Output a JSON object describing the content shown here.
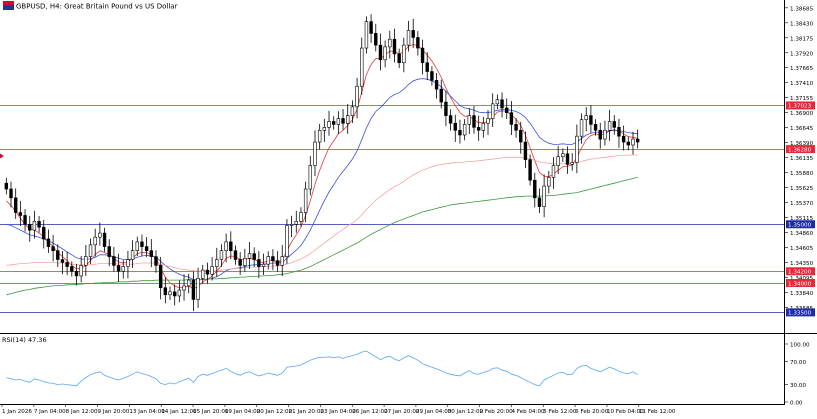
{
  "header": {
    "symbol_line": "GBPUSD, H4:  Great Britain Pound vs US Dollar"
  },
  "colors": {
    "background": "#ffffff",
    "bull_body": "#ffffff",
    "bear_body": "#000000",
    "wick": "#000000",
    "ma_fast": "#e53935",
    "ma_mid": "#3f51d8",
    "ma_slow": "#f4a7a0",
    "ma_long": "#3a9a3a",
    "rsi_line": "#5aa8f0",
    "hline_red": "#e8273a",
    "hline_blue": "#1e2aa8",
    "axis_text": "#000000"
  },
  "price_axis": {
    "min": 1.332,
    "max": 1.3875,
    "ticks": [
      "1.38685",
      "1.38430",
      "1.38175",
      "1.37920",
      "1.37665",
      "1.37410",
      "1.37155",
      "1.36900",
      "1.36645",
      "1.36390",
      "1.36135",
      "1.35880",
      "1.35625",
      "1.35370",
      "1.35115",
      "1.34860",
      "1.34605",
      "1.34350",
      "1.34095",
      "1.33840",
      "1.33585"
    ]
  },
  "price_labels": [
    {
      "text": "1.37023",
      "price": 1.37023,
      "kind": "red"
    },
    {
      "text": "1.36280",
      "price": 1.3628,
      "kind": "red"
    },
    {
      "text": "1.35000",
      "price": 1.35,
      "kind": "blue"
    },
    {
      "text": "1.34200",
      "price": 1.342,
      "kind": "red"
    },
    {
      "text": "1.34000",
      "price": 1.34,
      "kind": "red"
    },
    {
      "text": "1.33500",
      "price": 1.335,
      "kind": "blue"
    }
  ],
  "time_axis": {
    "labels": [
      "1 Jan 2026",
      "7 Jan 04:00",
      "8 Jan 12:00",
      "9 Jan 20:00",
      "13 Jan 04:00",
      "14 Jan 12:00",
      "15 Jan 20:00",
      "19 Jan 04:00",
      "20 Jan 12:00",
      "21 Jan 20:00",
      "23 Jan 04:00",
      "26 Jan 12:00",
      "27 Jan 20:00",
      "29 Jan 04:00",
      "30 Jan 12:00",
      "2 Feb 20:00",
      "4 Feb 04:00",
      "5 Feb 12:00",
      "6 Feb 20:00",
      "10 Feb 04:00",
      "11 Feb 12:00"
    ]
  },
  "rsi_panel": {
    "label": "RSI(14) 47.36",
    "min": 0,
    "max": 100,
    "ticks": [
      "100.00",
      "70.00",
      "30.00",
      "0.00"
    ]
  },
  "chart_data": {
    "type": "candlestick",
    "title": "GBPUSD, H4:  Great Britain Pound vs US Dollar",
    "timeframe": "H4",
    "candles_close": [
      1.356,
      1.3545,
      1.352,
      1.3515,
      1.35,
      1.349,
      1.3505,
      1.3495,
      1.3475,
      1.3462,
      1.3455,
      1.344,
      1.3435,
      1.3428,
      1.342,
      1.3412,
      1.343,
      1.3445,
      1.3465,
      1.3478,
      1.3485,
      1.3462,
      1.3445,
      1.343,
      1.342,
      1.3428,
      1.344,
      1.3455,
      1.347,
      1.3462,
      1.3455,
      1.3445,
      1.343,
      1.3392,
      1.338,
      1.3385,
      1.3378,
      1.3388,
      1.3395,
      1.3405,
      1.3372,
      1.3408,
      1.3422,
      1.3415,
      1.3428,
      1.344,
      1.3455,
      1.347,
      1.3455,
      1.344,
      1.343,
      1.3442,
      1.345,
      1.344,
      1.3428,
      1.3432,
      1.3445,
      1.3438,
      1.343,
      1.3445,
      1.3498,
      1.35,
      1.3505,
      1.352,
      1.356,
      1.36,
      1.364,
      1.366,
      1.3665,
      1.3675,
      1.367,
      1.368,
      1.3672,
      1.3685,
      1.37,
      1.3735,
      1.38,
      1.3845,
      1.3825,
      1.3805,
      1.378,
      1.3802,
      1.3815,
      1.379,
      1.3775,
      1.3805,
      1.383,
      1.3818,
      1.38,
      1.3775,
      1.376,
      1.3745,
      1.373,
      1.3708,
      1.3685,
      1.3672,
      1.366,
      1.3652,
      1.367,
      1.3685,
      1.3665,
      1.366,
      1.3672,
      1.368,
      1.3705,
      1.3712,
      1.3698,
      1.369,
      1.367,
      1.366,
      1.364,
      1.361,
      1.3575,
      1.3545,
      1.353,
      1.3565,
      1.358,
      1.36,
      1.3615,
      1.362,
      1.3602,
      1.3605,
      1.365,
      1.3678,
      1.3685,
      1.367,
      1.366,
      1.3645,
      1.366,
      1.3675,
      1.3665,
      1.365,
      1.364,
      1.3635,
      1.3645,
      1.364
    ],
    "candles_start_open": 1.357,
    "series": [
      {
        "kind": "ma",
        "color": "ma_fast",
        "values": [
          1.354,
          1.3532,
          1.3522,
          1.351,
          1.35,
          1.3492,
          1.349,
          1.3485,
          1.3478,
          1.347,
          1.3462,
          1.3452,
          1.3445,
          1.3438,
          1.343,
          1.3424,
          1.3425,
          1.343,
          1.3438,
          1.3448,
          1.3455,
          1.3452,
          1.3448,
          1.3442,
          1.3436,
          1.3434,
          1.3436,
          1.3442,
          1.345,
          1.3452,
          1.3452,
          1.3448,
          1.3442,
          1.3425,
          1.341,
          1.34,
          1.3395,
          1.3392,
          1.3392,
          1.3395,
          1.339,
          1.3394,
          1.3402,
          1.3406,
          1.3412,
          1.342,
          1.343,
          1.3442,
          1.3446,
          1.3445,
          1.344,
          1.344,
          1.3442,
          1.344,
          1.3436,
          1.3435,
          1.3438,
          1.3438,
          1.3436,
          1.3438,
          1.3455,
          1.347,
          1.3482,
          1.3495,
          1.3515,
          1.354,
          1.3568,
          1.3592,
          1.3612,
          1.363,
          1.3642,
          1.3654,
          1.366,
          1.3668,
          1.3678,
          1.3696,
          1.3725,
          1.3755,
          1.3772,
          1.3782,
          1.3782,
          1.3788,
          1.3795,
          1.3794,
          1.379,
          1.3794,
          1.3803,
          1.3806,
          1.3804,
          1.3797,
          1.3788,
          1.3778,
          1.3765,
          1.375,
          1.3732,
          1.3716,
          1.3702,
          1.369,
          1.3684,
          1.3684,
          1.3678,
          1.3673,
          1.3673,
          1.3675,
          1.3683,
          1.3691,
          1.3693,
          1.3692,
          1.3686,
          1.3679,
          1.3668,
          1.3652,
          1.363,
          1.3608,
          1.3588,
          1.3582,
          1.3581,
          1.3585,
          1.3592,
          1.3598,
          1.3599,
          1.3601,
          1.3614,
          1.363,
          1.3644,
          1.3651,
          1.3654,
          1.3652,
          1.3654,
          1.3659,
          1.3661,
          1.3658,
          1.3654,
          1.3649,
          1.3648,
          1.3646
        ]
      },
      {
        "kind": "ma",
        "color": "ma_mid",
        "values": [
          1.35,
          1.3498,
          1.3494,
          1.349,
          1.3486,
          1.3482,
          1.348,
          1.3478,
          1.3475,
          1.3472,
          1.3468,
          1.3463,
          1.3458,
          1.3453,
          1.3448,
          1.3443,
          1.3441,
          1.344,
          1.3441,
          1.3444,
          1.3448,
          1.3448,
          1.3447,
          1.3445,
          1.3442,
          1.344,
          1.344,
          1.3441,
          1.3444,
          1.3446,
          1.3447,
          1.3446,
          1.3444,
          1.3437,
          1.343,
          1.3424,
          1.3419,
          1.3415,
          1.3412,
          1.341,
          1.3406,
          1.3405,
          1.3406,
          1.3406,
          1.3408,
          1.3411,
          1.3415,
          1.3421,
          1.3424,
          1.3425,
          1.3426,
          1.3428,
          1.343,
          1.3431,
          1.3431,
          1.3432,
          1.3433,
          1.3434,
          1.3434,
          1.3435,
          1.3442,
          1.3449,
          1.3456,
          1.3464,
          1.3476,
          1.349,
          1.3507,
          1.3524,
          1.354,
          1.3555,
          1.3567,
          1.358,
          1.359,
          1.36,
          1.3611,
          1.3625,
          1.3644,
          1.3664,
          1.368,
          1.3692,
          1.3699,
          1.3707,
          1.3716,
          1.3721,
          1.3724,
          1.373,
          1.3738,
          1.3744,
          1.3747,
          1.3748,
          1.3747,
          1.3744,
          1.374,
          1.3734,
          1.3726,
          1.3718,
          1.371,
          1.3702,
          1.3698,
          1.3697,
          1.3694,
          1.3691,
          1.369,
          1.369,
          1.3692,
          1.3694,
          1.3695,
          1.3695,
          1.3694,
          1.3692,
          1.3688,
          1.3682,
          1.3672,
          1.366,
          1.3648,
          1.3642,
          1.3638,
          1.3636,
          1.3636,
          1.3637,
          1.3636,
          1.3636,
          1.364,
          1.3646,
          1.3652,
          1.3655,
          1.3657,
          1.3657,
          1.3657,
          1.3659,
          1.366,
          1.3659,
          1.3658,
          1.3656,
          1.3655,
          1.3654
        ]
      },
      {
        "kind": "ma",
        "color": "ma_slow",
        "values": [
          1.343,
          1.3431,
          1.3432,
          1.3433,
          1.3433,
          1.3434,
          1.3435,
          1.3435,
          1.3435,
          1.3435,
          1.3435,
          1.3434,
          1.3434,
          1.3433,
          1.3432,
          1.3431,
          1.3431,
          1.3431,
          1.3431,
          1.3432,
          1.3433,
          1.3433,
          1.3433,
          1.3433,
          1.3432,
          1.3432,
          1.3432,
          1.3432,
          1.3433,
          1.3434,
          1.3434,
          1.3434,
          1.3434,
          1.3432,
          1.343,
          1.3428,
          1.3426,
          1.3424,
          1.3423,
          1.3422,
          1.3421,
          1.342,
          1.342,
          1.342,
          1.342,
          1.3421,
          1.3422,
          1.3423,
          1.3424,
          1.3425,
          1.3425,
          1.3426,
          1.3427,
          1.3427,
          1.3427,
          1.3428,
          1.3428,
          1.3429,
          1.3429,
          1.343,
          1.3432,
          1.3435,
          1.3438,
          1.3441,
          1.3445,
          1.345,
          1.3456,
          1.3462,
          1.3468,
          1.3474,
          1.348,
          1.3486,
          1.3491,
          1.3497,
          1.3502,
          1.3508,
          1.3516,
          1.3525,
          1.3533,
          1.3541,
          1.3547,
          1.3553,
          1.3559,
          1.3564,
          1.3568,
          1.3573,
          1.3579,
          1.3584,
          1.3588,
          1.3592,
          1.3595,
          1.3598,
          1.36,
          1.3602,
          1.3603,
          1.3604,
          1.3605,
          1.3605,
          1.3606,
          1.3607,
          1.3607,
          1.3608,
          1.3609,
          1.361,
          1.3611,
          1.3612,
          1.3613,
          1.3614,
          1.3614,
          1.3614,
          1.3614,
          1.3613,
          1.3611,
          1.3609,
          1.3606,
          1.3605,
          1.3604,
          1.3603,
          1.3603,
          1.3603,
          1.3603,
          1.3603,
          1.3605,
          1.3607,
          1.3609,
          1.3611,
          1.3612,
          1.3613,
          1.3614,
          1.3615,
          1.3616,
          1.3617,
          1.3617,
          1.3618,
          1.3618,
          1.3618
        ]
      },
      {
        "kind": "ma",
        "color": "ma_long",
        "values": [
          1.338,
          1.3382,
          1.3384,
          1.3386,
          1.3388,
          1.3389,
          1.3391,
          1.3392,
          1.3393,
          1.3394,
          1.3395,
          1.3396,
          1.3396,
          1.3397,
          1.3397,
          1.3398,
          1.3398,
          1.3399,
          1.3399,
          1.34,
          1.34,
          1.3401,
          1.3401,
          1.3401,
          1.3402,
          1.3402,
          1.3402,
          1.3403,
          1.3403,
          1.3404,
          1.3404,
          1.3404,
          1.3405,
          1.3405,
          1.3405,
          1.3405,
          1.3405,
          1.3405,
          1.3405,
          1.3406,
          1.3406,
          1.3406,
          1.3406,
          1.3407,
          1.3407,
          1.3407,
          1.3408,
          1.3408,
          1.3409,
          1.3409,
          1.341,
          1.341,
          1.3411,
          1.3411,
          1.3412,
          1.3412,
          1.3413,
          1.3413,
          1.3414,
          1.3415,
          1.3416,
          1.3418,
          1.342,
          1.3422,
          1.3425,
          1.3428,
          1.3432,
          1.3436,
          1.344,
          1.3444,
          1.3448,
          1.3452,
          1.3456,
          1.346,
          1.3464,
          1.3468,
          1.3473,
          1.3478,
          1.3483,
          1.3487,
          1.3491,
          1.3495,
          1.3499,
          1.3503,
          1.3506,
          1.3509,
          1.3512,
          1.3515,
          1.3518,
          1.3521,
          1.3523,
          1.3525,
          1.3527,
          1.3529,
          1.3531,
          1.3533,
          1.3534,
          1.3535,
          1.3536,
          1.3537,
          1.3538,
          1.3539,
          1.354,
          1.3541,
          1.3542,
          1.3543,
          1.3544,
          1.3545,
          1.3546,
          1.3547,
          1.3547,
          1.3548,
          1.3548,
          1.3548,
          1.3548,
          1.3548,
          1.3549,
          1.3549,
          1.355,
          1.3551,
          1.3552,
          1.3553,
          1.3554,
          1.3556,
          1.3558,
          1.356,
          1.3562,
          1.3564,
          1.3566,
          1.3568,
          1.357,
          1.3572,
          1.3574,
          1.3576,
          1.3578,
          1.358
        ]
      },
      {
        "kind": "rsi",
        "color": "rsi_line",
        "values": [
          42,
          40,
          38,
          39,
          36,
          34,
          40,
          38,
          35,
          33,
          32,
          30,
          31,
          30,
          29,
          28,
          36,
          42,
          47,
          50,
          52,
          46,
          43,
          40,
          38,
          41,
          44,
          48,
          52,
          49,
          47,
          44,
          40,
          32,
          30,
          33,
          31,
          35,
          38,
          41,
          34,
          44,
          48,
          46,
          49,
          52,
          55,
          58,
          53,
          49,
          46,
          50,
          52,
          48,
          45,
          47,
          50,
          48,
          46,
          50,
          60,
          61,
          62,
          64,
          68,
          72,
          75,
          77,
          77,
          78,
          76,
          78,
          75,
          78,
          80,
          82,
          86,
          88,
          83,
          78,
          73,
          77,
          79,
          74,
          71,
          76,
          80,
          76,
          72,
          66,
          63,
          60,
          57,
          54,
          50,
          48,
          46,
          45,
          50,
          54,
          49,
          48,
          51,
          53,
          58,
          59,
          55,
          53,
          48,
          46,
          42,
          38,
          34,
          30,
          28,
          38,
          42,
          46,
          50,
          51,
          47,
          48,
          58,
          62,
          63,
          58,
          55,
          52,
          56,
          60,
          57,
          53,
          50,
          49,
          52,
          47
        ]
      }
    ],
    "ylabel": "",
    "xlabel": ""
  }
}
